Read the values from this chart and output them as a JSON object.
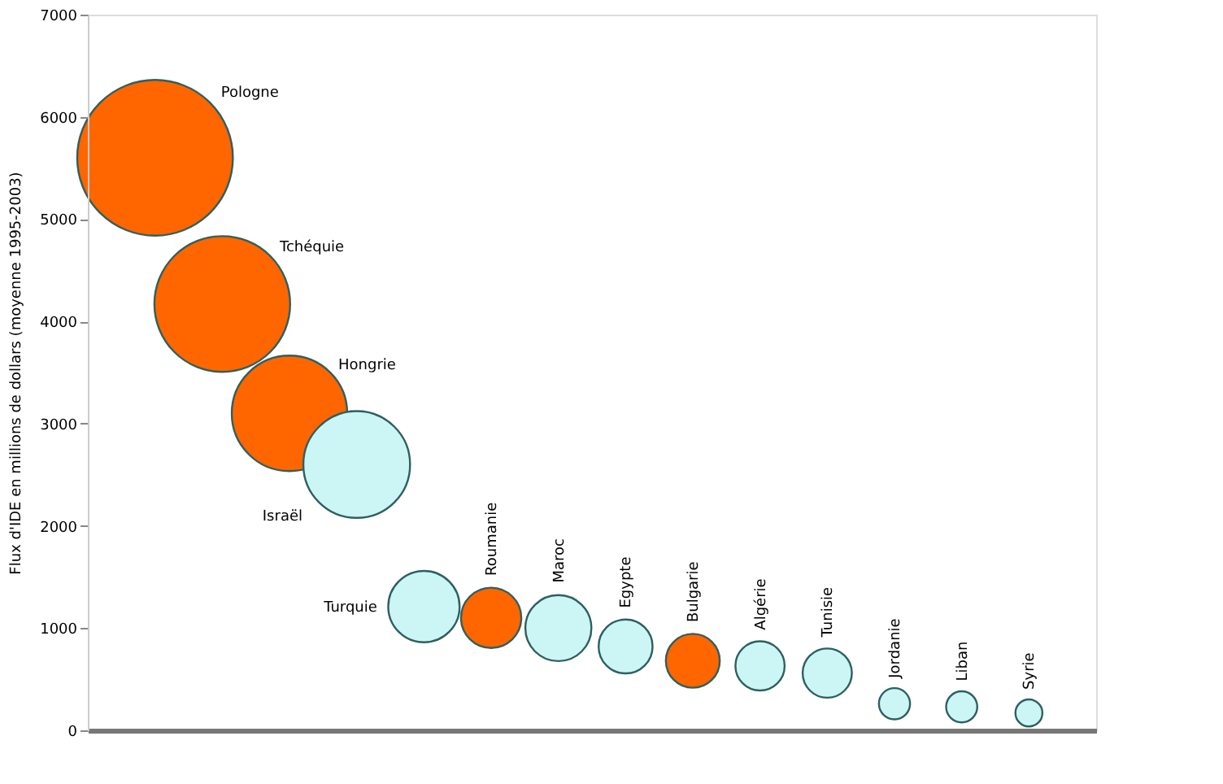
{
  "chart_data": {
    "type": "bubble",
    "ylabel": "Flux d'IDE en millions de dollars (moyenne 1995-2003)",
    "categories": [
      null,
      null,
      null,
      null,
      null,
      null,
      null,
      null,
      null,
      null,
      null,
      null,
      null,
      null
    ],
    "values": [
      5600,
      4170,
      3100,
      2600,
      1210,
      1100,
      1000,
      820,
      680,
      630,
      560,
      260,
      230,
      170
    ],
    "sizes": [
      1,
      0.76,
      0.55,
      0.47,
      0.21,
      0.15,
      0.18,
      0.12,
      0.12,
      0.1,
      0.1,
      0.04,
      0.04,
      0.03
    ],
    "colors": [
      "#ff6600",
      "#ff6600",
      "#ff6600",
      "#ccf6f6",
      "#ccf6f6",
      "#ff6600",
      "#ccf6f6",
      "#ccf6f6",
      "#ff6600",
      "#ccf6f6",
      "#ccf6f6",
      "#ccf6f6",
      "#ccf6f6",
      "#ccf6f6"
    ],
    "annotations": [
      "Pologne",
      "Tchéquie",
      "Hongrie",
      "Israël",
      "Turquie",
      "Roumanie",
      "Maroc",
      "Egypte",
      "Bulgarie",
      "Algérie",
      "Tunisie",
      "Jordanie",
      "Liban",
      "Syrie"
    ],
    "ylim": [
      0,
      7000
    ],
    "yticks": [
      0,
      1000,
      2000,
      3000,
      4000,
      5000,
      6000,
      7000
    ],
    "grid": false,
    "tick_labels": "y"
  }
}
